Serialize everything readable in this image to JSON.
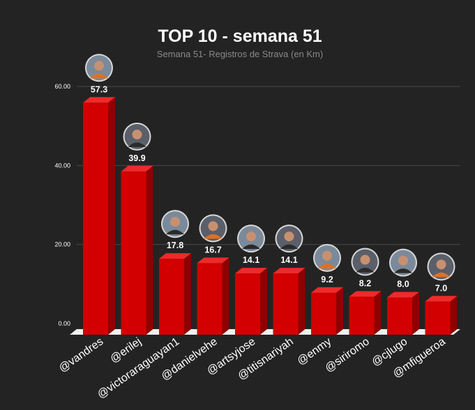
{
  "chart_data": {
    "type": "bar",
    "title": "TOP 10 - semana 51",
    "subtitle": "Semana 51- Registros de Strava (en Km)",
    "xlabel": "",
    "ylabel": "",
    "ylim": [
      0,
      60
    ],
    "yticks": [
      "0.00",
      "20.00",
      "40.00",
      "60.00"
    ],
    "grid": true,
    "categories": [
      "@vandres",
      "@erilej",
      "@victoraraguayan1",
      "@danielvehe",
      "@artsyjose",
      "@titisnariyah",
      "@enmy",
      "@siriromo",
      "@cjlugo",
      "@mfigueroa"
    ],
    "values": [
      57.3,
      39.9,
      17.8,
      16.7,
      14.1,
      14.1,
      9.2,
      8.2,
      8.0,
      7.0
    ],
    "data_labels": [
      "57.3",
      "39.9",
      "17.8",
      "16.7",
      "14.1",
      "14.1",
      "9.2",
      "8.2",
      "8.0",
      "7.0"
    ],
    "avatars": [
      "avatar-vandres",
      "avatar-erilej",
      "avatar-victoraraguayan1",
      "avatar-danielvehe",
      "avatar-artsyjose",
      "avatar-titisnariyah",
      "avatar-enmy",
      "avatar-siriromo",
      "avatar-cjlugo",
      "avatar-mfigueroa"
    ],
    "colors": {
      "bar_front": "#d20000",
      "bar_side": "#8e0000",
      "bar_top": "#ee2a2a",
      "floor": "#f0f0f0",
      "grid": "#4a4a4a",
      "background": "#232323",
      "text": "#ffffff",
      "subtitle": "#8a8a8a"
    }
  }
}
